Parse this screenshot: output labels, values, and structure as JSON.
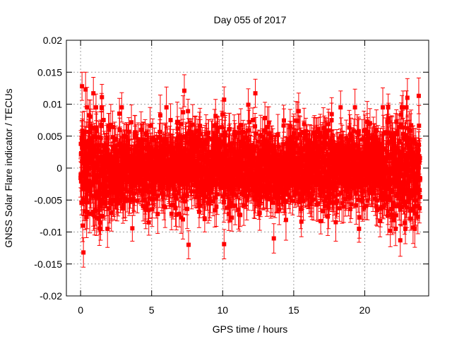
{
  "chart_data": {
    "type": "scatter",
    "title": "Day 055 of 2017",
    "xlabel": "GPS time / hours",
    "ylabel": "GNSS Solar Flare indicator / TECUs",
    "xlim": [
      -1,
      24.5
    ],
    "ylim": [
      -0.02,
      0.02
    ],
    "x_ticks": [
      0,
      5,
      10,
      15,
      20
    ],
    "y_ticks": [
      -0.02,
      -0.015,
      -0.01,
      -0.005,
      0,
      0.005,
      0.01,
      0.015,
      0.02
    ],
    "x_tick_labels": [
      "0",
      "5",
      "10",
      "15",
      "20"
    ],
    "y_tick_labels": [
      "-0.02",
      "-0.015",
      "-0.01",
      "-0.005",
      "0",
      "0.005",
      "0.01",
      "0.015",
      "0.02"
    ],
    "grid": true,
    "error_bars": true,
    "marker": "square",
    "color": "#ff0000",
    "x_range": [
      0,
      23.9
    ],
    "typical_spread": 0.004,
    "typical_error": 0.0025,
    "notable_points": [
      {
        "x": 0.1,
        "y": 0.0128,
        "err": 0.0022
      },
      {
        "x": 0.35,
        "y": 0.0123,
        "err": 0.0027
      },
      {
        "x": 0.9,
        "y": 0.0117,
        "err": 0.0025
      },
      {
        "x": 1.5,
        "y": 0.0111,
        "err": 0.002
      },
      {
        "x": 0.2,
        "y": -0.0132,
        "err": 0.0023
      },
      {
        "x": 0.15,
        "y": -0.009,
        "err": 0.0025
      },
      {
        "x": 7.3,
        "y": 0.0121,
        "err": 0.0025
      },
      {
        "x": 7.6,
        "y": -0.012,
        "err": 0.0022
      },
      {
        "x": 10.1,
        "y": 0.0107,
        "err": 0.002
      },
      {
        "x": 10.1,
        "y": -0.0119,
        "err": 0.0023
      },
      {
        "x": 12.3,
        "y": 0.0117,
        "err": 0.0022
      },
      {
        "x": 13.6,
        "y": -0.011,
        "err": 0.0023
      },
      {
        "x": 22.5,
        "y": -0.0113,
        "err": 0.0025
      },
      {
        "x": 23.0,
        "y": 0.011,
        "err": 0.003
      },
      {
        "x": 23.8,
        "y": 0.0113,
        "err": 0.0028
      },
      {
        "x": 21.8,
        "y": -0.0098,
        "err": 0.0025
      },
      {
        "x": 23.4,
        "y": -0.0093,
        "err": 0.0025
      },
      {
        "x": 4.8,
        "y": -0.0085,
        "err": 0.002
      },
      {
        "x": 16.9,
        "y": -0.0083,
        "err": 0.002
      },
      {
        "x": 11.8,
        "y": 0.0099,
        "err": 0.0025
      }
    ]
  }
}
